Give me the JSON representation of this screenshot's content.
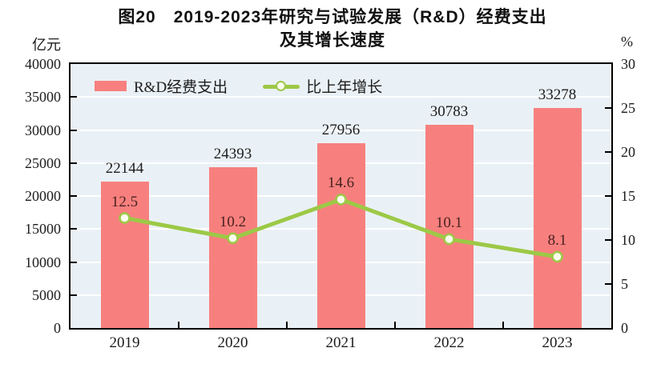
{
  "title": {
    "line1": "图20　2019-2023年研究与试验发展（R&D）经费支出",
    "line2": "及其增长速度"
  },
  "chart_data": {
    "type": "combo-bar-line",
    "categories": [
      "2019",
      "2020",
      "2021",
      "2022",
      "2023"
    ],
    "series": [
      {
        "name": "R&D经费支出",
        "type": "bar",
        "axis": "left",
        "values": [
          22144,
          24393,
          27956,
          30783,
          33278
        ]
      },
      {
        "name": "比上年增长",
        "type": "line",
        "axis": "right",
        "values": [
          12.5,
          10.2,
          14.6,
          10.1,
          8.1
        ]
      }
    ],
    "left_axis": {
      "unit": "亿元",
      "min": 0,
      "max": 40000,
      "step": 5000
    },
    "right_axis": {
      "unit": "%",
      "min": 0,
      "max": 30,
      "step": 5
    },
    "grid": true,
    "legend_position": "top-inside",
    "title": "图20　2019-2023年研究与试验发展（R&D）经费支出及其增长速度"
  },
  "colors": {
    "bar": "#F7807E",
    "line": "#9CC946",
    "marker_fill": "#FCFDEE",
    "plot_bg": "#EAF1F6",
    "grid": "#FFFFFF",
    "frame": "#000000",
    "bar_label": "#1C1C1C",
    "line_label": "#4A2220"
  }
}
